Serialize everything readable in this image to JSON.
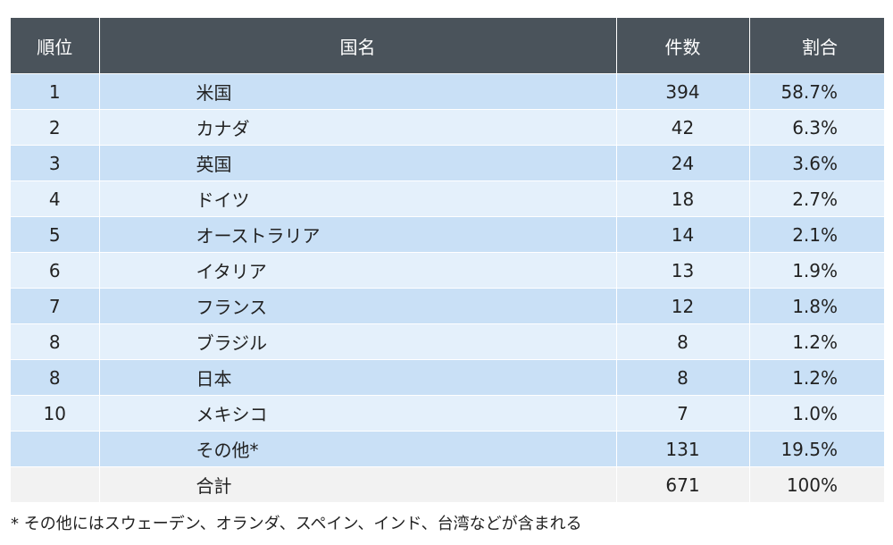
{
  "table": {
    "headers": {
      "rank": "順位",
      "country": "国名",
      "count": "件数",
      "share": "割合"
    },
    "rows": [
      {
        "rank": "1",
        "country": "米国",
        "count": "394",
        "share": "58.7%"
      },
      {
        "rank": "2",
        "country": "カナダ",
        "count": "42",
        "share": "6.3%"
      },
      {
        "rank": "3",
        "country": "英国",
        "count": "24",
        "share": "3.6%"
      },
      {
        "rank": "4",
        "country": "ドイツ",
        "count": "18",
        "share": "2.7%"
      },
      {
        "rank": "5",
        "country": "オーストラリア",
        "count": "14",
        "share": "2.1%"
      },
      {
        "rank": "6",
        "country": "イタリア",
        "count": "13",
        "share": "1.9%"
      },
      {
        "rank": "7",
        "country": "フランス",
        "count": "12",
        "share": "1.8%"
      },
      {
        "rank": "8",
        "country": "ブラジル",
        "count": "8",
        "share": "1.2%"
      },
      {
        "rank": "8",
        "country": "日本",
        "count": "8",
        "share": "1.2%"
      },
      {
        "rank": "10",
        "country": "メキシコ",
        "count": "7",
        "share": "1.0%"
      },
      {
        "rank": "",
        "country": "その他*",
        "count": "131",
        "share": "19.5%"
      }
    ],
    "total": {
      "rank": "",
      "country": "合計",
      "count": "671",
      "share": "100%"
    }
  },
  "footnote": "* その他にはスウェーデン、オランダ、スペイン、インド、台湾などが含まれる",
  "colors": {
    "header_bg": "#4a535b",
    "row_odd": "#c9e0f6",
    "row_even": "#e4f0fb",
    "total_row": "#f2f2f2"
  }
}
